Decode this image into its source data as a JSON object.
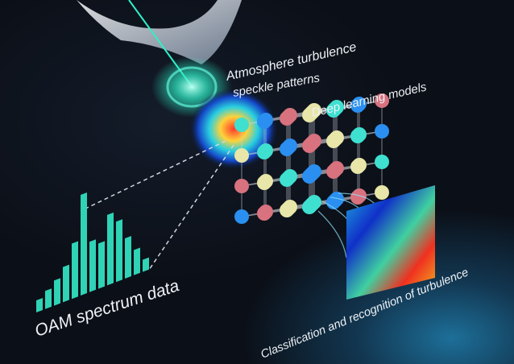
{
  "labels": {
    "atmosphere": "Atmosphere turbulence",
    "speckle": "speckle patterns",
    "deep_learning": "Deep learning models",
    "oam": "OAM spectrum data",
    "classification": "Classification and recognition of turbulence"
  },
  "oam_histogram_relative_heights": [
    0.12,
    0.18,
    0.25,
    0.35,
    0.55,
    1.0,
    0.5,
    0.45,
    0.7,
    0.6,
    0.4,
    0.25,
    0.12
  ],
  "colors": {
    "background": "#0b0f17",
    "histogram": "#2fd3b5",
    "sphere_cyan": "#3fe0d0",
    "sphere_yellow": "#e8e6a8",
    "sphere_pink": "#d7727e",
    "sphere_blue": "#2a8ff0",
    "beam": "#2ef0c8"
  }
}
